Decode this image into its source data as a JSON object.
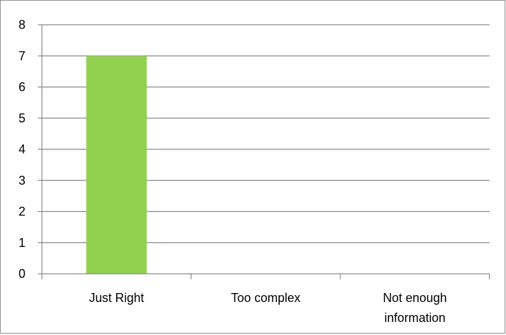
{
  "chart_data": {
    "type": "bar",
    "categories": [
      "Just Right",
      "Too complex",
      "Not enough information"
    ],
    "category_label_lines": [
      [
        "Just Right"
      ],
      [
        "Too complex"
      ],
      [
        "Not enough",
        "information"
      ]
    ],
    "values": [
      7,
      0,
      0
    ],
    "title": "",
    "xlabel": "",
    "ylabel": "",
    "ylim": [
      0,
      8
    ],
    "yticks": [
      "0",
      "1",
      "2",
      "3",
      "4",
      "5",
      "6",
      "7",
      "8"
    ],
    "grid": true,
    "legend": "none",
    "bar_color": "#92d050",
    "grid_color": "#868686"
  }
}
